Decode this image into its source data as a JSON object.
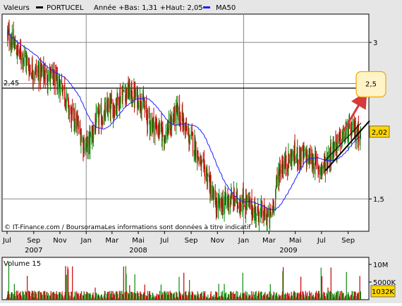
{
  "legend": {
    "series_label": "Valeurs",
    "stock_name": "PORTUCEL",
    "range_text": "Année +Bas: 1,31 +Haut: 2,05",
    "ma_label": "MA50",
    "stock_color": "#000000",
    "ma_color": "#1f1fff"
  },
  "watermark": "© IT-Finance.com / BoursoramaLes informations sont données à titre indicatif",
  "colors": {
    "up": "#0a8a0a",
    "down": "#c80000",
    "ma": "#1f1fff",
    "frame_bg": "#e6e6e6",
    "plot_bg": "#ffffff",
    "annotation_arrow": "#d63a3a",
    "callout_border": "#f0a800",
    "callout_bg": "#fff3c8",
    "trend_channel": "#000000"
  },
  "chart_data": [
    {
      "type": "candlestick",
      "title": "PORTUCEL",
      "y_scale": "log",
      "ylim": [
        1.3,
        3.4
      ],
      "y_ticks": [
        {
          "value": 3,
          "label": "3"
        },
        {
          "value": 2.5,
          "label": "2,5"
        },
        {
          "value": 1.5,
          "label": "1,5"
        }
      ],
      "x_months": [
        {
          "label": "Jul"
        },
        {
          "label": "Sep"
        },
        {
          "label": "Nov"
        },
        {
          "label": "Jan"
        },
        {
          "label": "Mar"
        },
        {
          "label": "Mai"
        },
        {
          "label": "Jul"
        },
        {
          "label": "Sep"
        },
        {
          "label": "Nov"
        },
        {
          "label": "Jan"
        },
        {
          "label": "Mar"
        },
        {
          "label": "Mai"
        },
        {
          "label": "Jul"
        },
        {
          "label": "Sep"
        }
      ],
      "x_years": [
        "2007",
        "2008",
        "2009"
      ],
      "x_start": "2007-07",
      "x_end": "2009-10",
      "anchor_prices": [
        {
          "date": "2007-07-01",
          "close": 3.1
        },
        {
          "date": "2007-08-01",
          "close": 2.85
        },
        {
          "date": "2007-09-01",
          "close": 2.65
        },
        {
          "date": "2007-10-01",
          "close": 2.6
        },
        {
          "date": "2007-11-01",
          "close": 2.5
        },
        {
          "date": "2007-12-01",
          "close": 2.15
        },
        {
          "date": "2008-01-01",
          "close": 1.9
        },
        {
          "date": "2008-02-01",
          "close": 2.15
        },
        {
          "date": "2008-03-01",
          "close": 2.25
        },
        {
          "date": "2008-04-01",
          "close": 2.42
        },
        {
          "date": "2008-05-01",
          "close": 2.35
        },
        {
          "date": "2008-06-01",
          "close": 2.1
        },
        {
          "date": "2008-07-01",
          "close": 2.0
        },
        {
          "date": "2008-08-01",
          "close": 2.2
        },
        {
          "date": "2008-09-01",
          "close": 1.95
        },
        {
          "date": "2008-10-01",
          "close": 1.7
        },
        {
          "date": "2008-11-01",
          "close": 1.45
        },
        {
          "date": "2008-12-01",
          "close": 1.5
        },
        {
          "date": "2009-01-01",
          "close": 1.48
        },
        {
          "date": "2009-02-01",
          "close": 1.42
        },
        {
          "date": "2009-03-01",
          "close": 1.38
        },
        {
          "date": "2009-04-01",
          "close": 1.75
        },
        {
          "date": "2009-05-01",
          "close": 1.82
        },
        {
          "date": "2009-06-01",
          "close": 1.8
        },
        {
          "date": "2009-07-01",
          "close": 1.72
        },
        {
          "date": "2009-08-01",
          "close": 1.9
        },
        {
          "date": "2009-09-01",
          "close": 2.02
        },
        {
          "date": "2009-10-01",
          "close": 2.02
        }
      ],
      "last_price": {
        "value": 2.02,
        "label": "2,02"
      },
      "reference_line": {
        "value": 2.45,
        "label": "2,45"
      },
      "target_callout": {
        "value": 2.5,
        "label": "2,5"
      },
      "moving_average": {
        "name": "MA50",
        "period": 50
      }
    },
    {
      "type": "bar",
      "title": "Volume 15",
      "y_ticks": [
        {
          "value": 10000000,
          "label": "10M"
        },
        {
          "value": 5000000,
          "label": "5000K"
        }
      ],
      "last_volume": {
        "value": 1032000,
        "label": "1032K"
      },
      "typical_volume": 1500000,
      "peak_volume": 12000000
    }
  ]
}
